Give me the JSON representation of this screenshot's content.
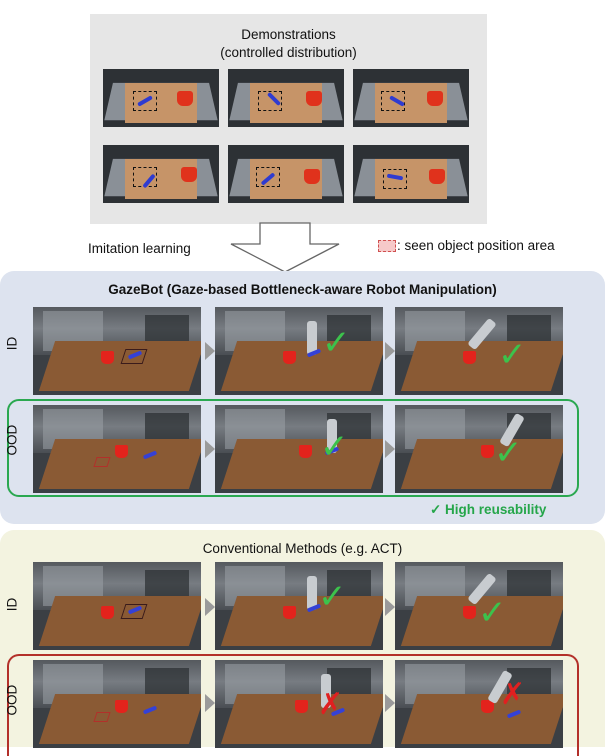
{
  "demonstrations": {
    "title_line1": "Demonstrations",
    "title_line2": "(controlled distribution)"
  },
  "imitation_label": "Imitation learning",
  "legend": {
    "text": ": seen object position area",
    "swatch_color": "#f6c9c9"
  },
  "gazebot": {
    "title": "GazeBot (Gaze-based Bottleneck-aware Robot Manipulation)",
    "rows": [
      "ID",
      "OOD"
    ],
    "reusability": "✓ High reusability",
    "outline_color": "#2aa850"
  },
  "conventional": {
    "title": "Conventional Methods (e.g. ACT)",
    "rows": [
      "ID",
      "OOD"
    ],
    "outline_color": "#b3302a"
  },
  "colors": {
    "success": "#3cc24c",
    "failure": "#e02020",
    "gaze_bg": "#dde3ef",
    "conv_bg": "#f3f3e0"
  },
  "icons": {
    "success": "checkmark-icon",
    "failure": "cross-icon",
    "step": "triangle-arrow-icon"
  }
}
